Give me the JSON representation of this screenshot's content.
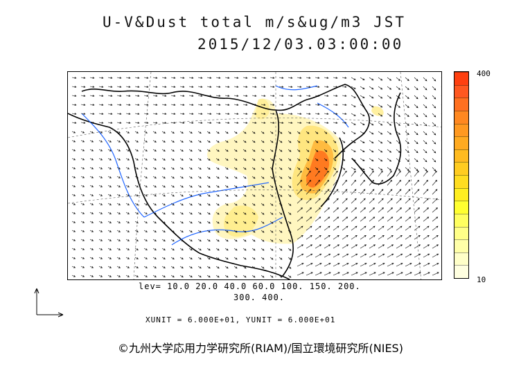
{
  "title": {
    "line1": "U-V&Dust total m/s&ug/m3 JST",
    "line2": "2015/12/03.03:00:00"
  },
  "colorbar": {
    "max_label": "400",
    "min_label": "10",
    "colors": [
      "#ffffe0",
      "#ffffc8",
      "#ffffa8",
      "#ffff88",
      "#ffff60",
      "#ffff30",
      "#ffee20",
      "#ffdd20",
      "#ffcc20",
      "#ffbb20",
      "#ffaa20",
      "#ff9920",
      "#ff8820",
      "#ff7020",
      "#ff5820",
      "#ff4010"
    ]
  },
  "levels": {
    "line1": "lev= 10.0 20.0 40.0 60.0 100. 150. 200.",
    "line2": "300. 400."
  },
  "units": "XUNIT = 6.000E+01, YUNIT = 6.000E+01",
  "copyright": "©九州大学応用力学研究所(RIAM)/国立環境研究所(NIES)"
}
